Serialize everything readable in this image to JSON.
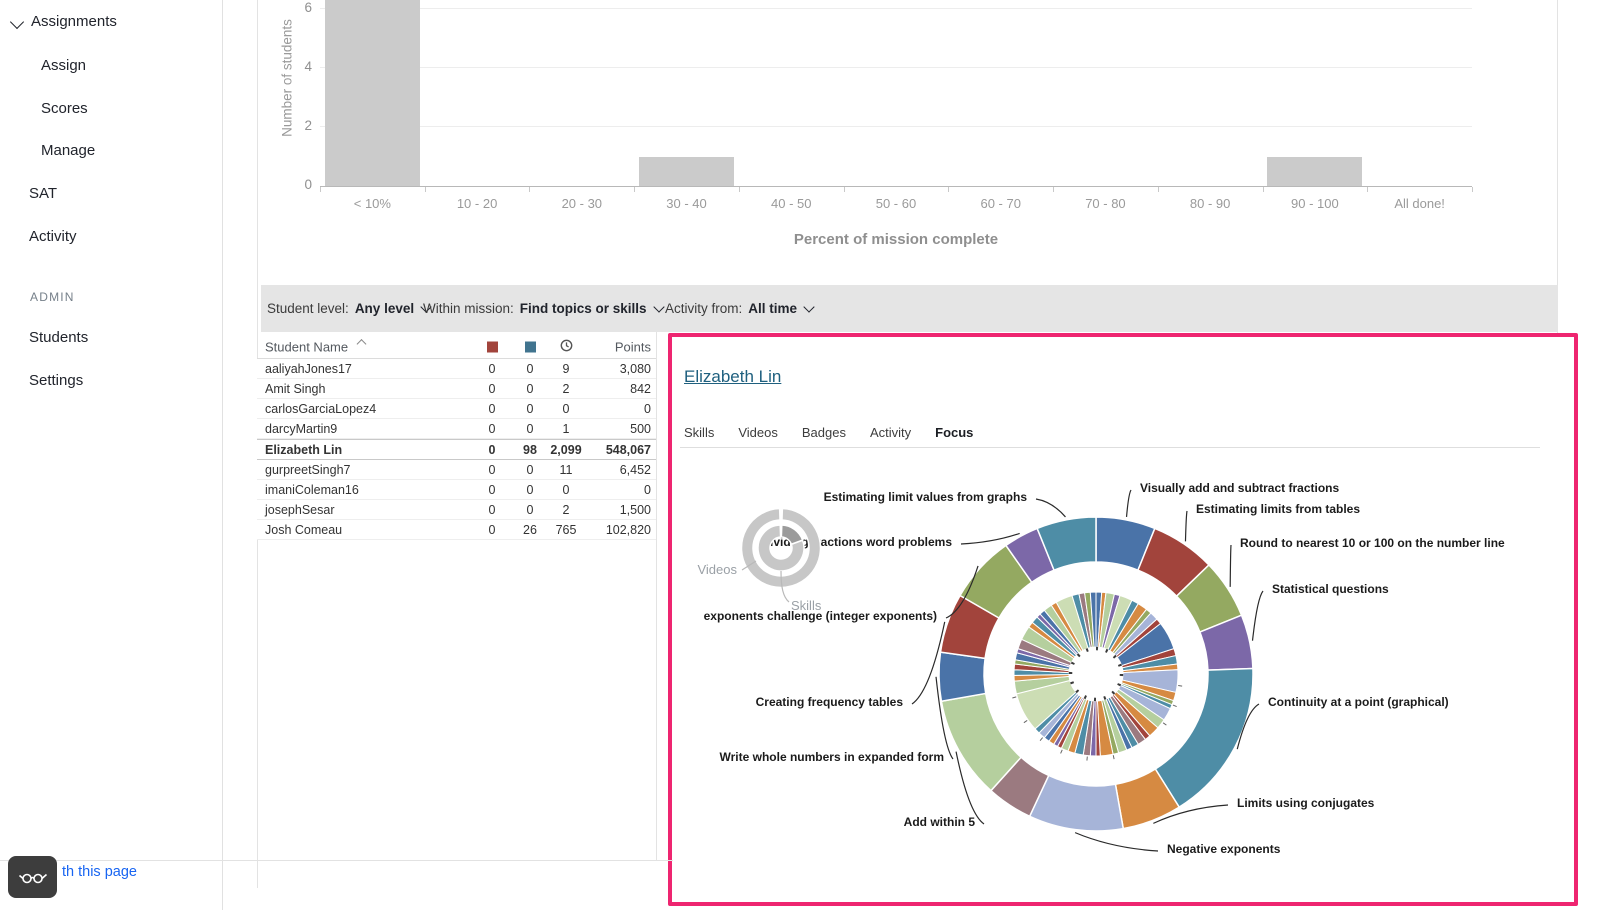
{
  "sidebar": {
    "items": [
      {
        "label": "Assignments",
        "type": "parent"
      },
      {
        "label": "Assign",
        "type": "child"
      },
      {
        "label": "Scores",
        "type": "child"
      },
      {
        "label": "Manage",
        "type": "child"
      },
      {
        "label": "SAT",
        "type": "top"
      },
      {
        "label": "Activity",
        "type": "top"
      },
      {
        "label": "ADMIN",
        "type": "section"
      },
      {
        "label": "Students",
        "type": "top"
      },
      {
        "label": "Settings",
        "type": "top"
      }
    ]
  },
  "filters": {
    "student_level_label": "Student level:",
    "student_level_value": "Any level",
    "within_mission_label": "Within mission:",
    "within_mission_value": "Find topics or skills",
    "activity_from_label": "Activity from:",
    "activity_from_value": "All time"
  },
  "table": {
    "name_header": "Student Name",
    "points_header": "Points",
    "icon_columns": [
      "struggling-red-square",
      "practiced-blue-square",
      "time-clock"
    ],
    "red_color": "#a2443c",
    "blue_color": "#41748f",
    "rows": [
      {
        "name": "aaliyahJones17",
        "red": "0",
        "blue": "0",
        "time": "9",
        "points": "3,080",
        "selected": false
      },
      {
        "name": "Amit Singh",
        "red": "0",
        "blue": "0",
        "time": "2",
        "points": "842",
        "selected": false
      },
      {
        "name": "carlosGarciaLopez4",
        "red": "0",
        "blue": "0",
        "time": "0",
        "points": "0",
        "selected": false
      },
      {
        "name": "darcyMartin9",
        "red": "0",
        "blue": "0",
        "time": "1",
        "points": "500",
        "selected": false
      },
      {
        "name": "Elizabeth Lin",
        "red": "0",
        "blue": "98",
        "time": "2,099",
        "points": "548,067",
        "selected": true
      },
      {
        "name": "gurpreetSingh7",
        "red": "0",
        "blue": "0",
        "time": "11",
        "points": "6,452",
        "selected": false
      },
      {
        "name": "imaniColeman16",
        "red": "0",
        "blue": "0",
        "time": "0",
        "points": "0",
        "selected": false
      },
      {
        "name": "josephSesar",
        "red": "0",
        "blue": "0",
        "time": "2",
        "points": "1,500",
        "selected": false
      },
      {
        "name": "Josh Comeau",
        "red": "0",
        "blue": "26",
        "time": "765",
        "points": "102,820",
        "selected": false
      }
    ]
  },
  "detail_panel": {
    "student_link": "Elizabeth Lin",
    "tabs": [
      {
        "label": "Skills",
        "active": false
      },
      {
        "label": "Videos",
        "active": false
      },
      {
        "label": "Badges",
        "active": false
      },
      {
        "label": "Activity",
        "active": false
      },
      {
        "label": "Focus",
        "active": true
      }
    ]
  },
  "footer": {
    "link_text": "th this page"
  },
  "annotation_color": "#ee2570",
  "chart_data": [
    {
      "type": "bar",
      "categories": [
        "< 10%",
        "10 - 20",
        "20 - 30",
        "30 - 40",
        "40 - 50",
        "50 - 60",
        "60 - 70",
        "70 - 80",
        "80 - 90",
        "90 - 100",
        "All done!"
      ],
      "values": [
        7,
        0,
        0,
        1,
        0,
        0,
        0,
        0,
        0,
        1,
        0
      ],
      "xlabel": "Percent of mission complete",
      "ylabel": "Number of students",
      "yticks": [
        0,
        2,
        4,
        6
      ],
      "ylim": [
        0,
        6.3
      ],
      "grid": true,
      "bar_color": "#cbcbcb",
      "note": "first bar is clipped by the top of the viewport"
    },
    {
      "type": "sunburst",
      "legend": {
        "outer": "Videos",
        "inner": "Skills"
      },
      "palette": [
        "#4E8DA6",
        "#4A73A8",
        "#A2443C",
        "#94A961",
        "#7C68A8",
        "#D68A42",
        "#A6B4D8",
        "#9B7A80",
        "#B5CF9E",
        "#CCDDB4"
      ],
      "outer_segments": [
        {
          "label": "Visually add and subtract fractions",
          "color": 1,
          "span": 22
        },
        {
          "label": "Estimating limits from tables",
          "color": 2,
          "span": 24
        },
        {
          "label": "Round to nearest 10 or 100 on the number line",
          "color": 3,
          "span": 22
        },
        {
          "label": "Statistical questions",
          "color": 4,
          "span": 20
        },
        {
          "label": "Continuity at a point (graphical)",
          "color": 0,
          "span": 60
        },
        {
          "label": "Limits using conjugates",
          "color": 5,
          "span": 22
        },
        {
          "label": "Negative exponents",
          "color": 6,
          "span": 35
        },
        {
          "label": "",
          "color": 7,
          "span": 17
        },
        {
          "label": "Add within 5",
          "color": 8,
          "span": 38
        },
        {
          "label": "Write whole numbers in expanded form",
          "color": 1,
          "span": 18
        },
        {
          "label": "Creating frequency tables",
          "color": 2,
          "span": 22
        },
        {
          "label": "exponents challenge (integer exponents)",
          "color": 3,
          "span": 25
        },
        {
          "label": "Dividing fractions word problems",
          "color": 4,
          "span": 13
        },
        {
          "label": "Estimating limit values from graphs",
          "color": 0,
          "span": 22
        }
      ],
      "inner_slices": [
        [
          1,
          4
        ],
        [
          5,
          3
        ],
        [
          8,
          6
        ],
        [
          4,
          4
        ],
        [
          9,
          9
        ],
        [
          0,
          5
        ],
        [
          5,
          7
        ],
        [
          3,
          4
        ],
        [
          6,
          6
        ],
        [
          2,
          4
        ],
        [
          1,
          20
        ],
        [
          2,
          5
        ],
        [
          0,
          6
        ],
        [
          5,
          4
        ],
        [
          6,
          16
        ],
        [
          5,
          6
        ],
        [
          3,
          3
        ],
        [
          0,
          3
        ],
        [
          6,
          9
        ],
        [
          8,
          7
        ],
        [
          5,
          8
        ],
        [
          2,
          4
        ],
        [
          7,
          6
        ],
        [
          0,
          5
        ],
        [
          1,
          4
        ],
        [
          8,
          6
        ],
        [
          3,
          4
        ],
        [
          5,
          9
        ],
        [
          2,
          3
        ],
        [
          4,
          4
        ],
        [
          7,
          5
        ],
        [
          0,
          6
        ],
        [
          5,
          5
        ],
        [
          8,
          5
        ],
        [
          2,
          3
        ],
        [
          4,
          3
        ],
        [
          5,
          4
        ],
        [
          1,
          4
        ],
        [
          6,
          5
        ],
        [
          0,
          4
        ],
        [
          9,
          28
        ],
        [
          8,
          9
        ],
        [
          5,
          4
        ],
        [
          0,
          4
        ],
        [
          2,
          4
        ],
        [
          3,
          3
        ],
        [
          1,
          5
        ],
        [
          4,
          3
        ],
        [
          7,
          7
        ],
        [
          8,
          10
        ],
        [
          5,
          4
        ],
        [
          0,
          5
        ],
        [
          4,
          3
        ],
        [
          1,
          4
        ],
        [
          8,
          6
        ],
        [
          5,
          4
        ],
        [
          9,
          12
        ],
        [
          0,
          5
        ],
        [
          7,
          4
        ],
        [
          3,
          4
        ],
        [
          1,
          4
        ]
      ]
    }
  ]
}
